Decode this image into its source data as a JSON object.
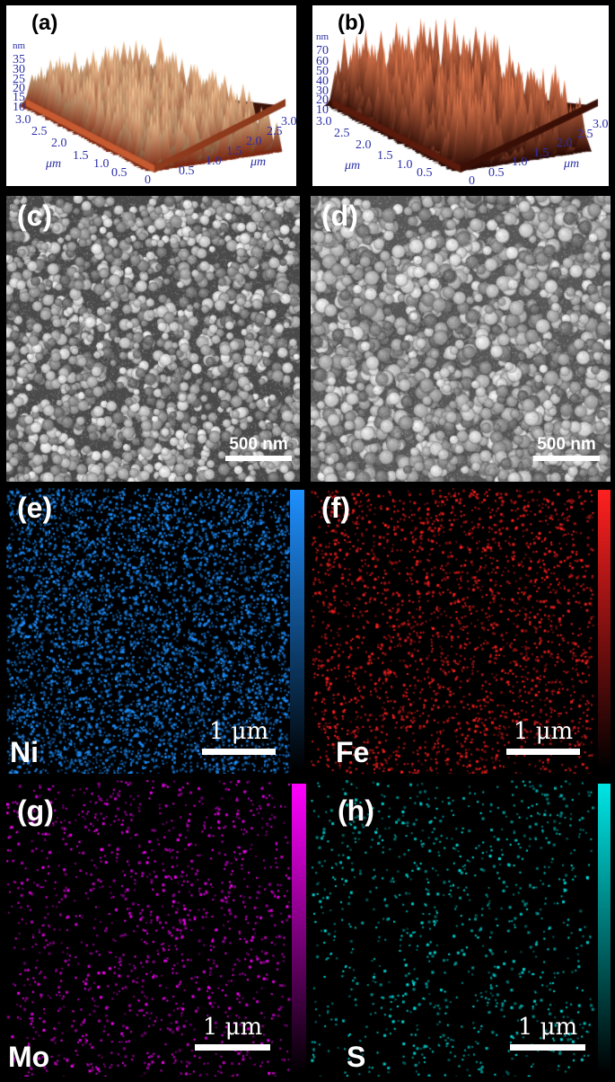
{
  "panels": {
    "a": {
      "label": "(a)",
      "z_ticks": [
        "nm",
        "35",
        "30",
        "25",
        "20",
        "15",
        "10"
      ],
      "left_ticks": [
        "3.0",
        "2.5",
        "2.0",
        "1.5",
        "1.0",
        "0.5",
        "0"
      ],
      "right_ticks": [
        "0.5",
        "1.0",
        "1.5",
        "2.0",
        "2.5",
        "3.0"
      ],
      "unit": "μm"
    },
    "b": {
      "label": "(b)",
      "z_ticks": [
        "nm",
        "70",
        "60",
        "50",
        "40",
        "30",
        "20",
        "10"
      ],
      "left_ticks": [
        "3.0",
        "2.5",
        "2.0",
        "1.5",
        "1.0",
        "0.5",
        "0"
      ],
      "right_ticks": [
        "0.5",
        "1.0",
        "1.5",
        "2.0",
        "2.5",
        "3.0"
      ],
      "unit": "μm"
    },
    "c": {
      "label": "(c)",
      "scale_bar": "500 nm"
    },
    "d": {
      "label": "(d)",
      "scale_bar": "500 nm"
    },
    "e": {
      "label": "(e)",
      "element": "Ni",
      "scale_bar": "1 μm",
      "color": "#1e90ff"
    },
    "f": {
      "label": "(f)",
      "element": "Fe",
      "scale_bar": "1 μm",
      "color": "#ff2020"
    },
    "g": {
      "label": "(g)",
      "element": "Mo",
      "scale_bar": "1 μm",
      "color": "#ff00ff"
    },
    "h": {
      "label": "(h)",
      "element": "S",
      "scale_bar": "1 μm",
      "color": "#00e5e5"
    }
  }
}
